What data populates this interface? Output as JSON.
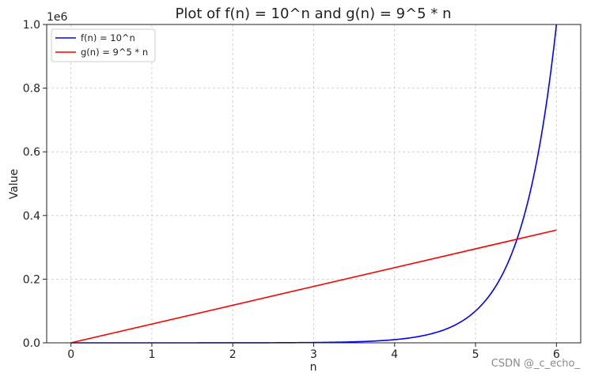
{
  "chart_data": {
    "type": "line",
    "title": "Plot of f(n) = 10^n and g(n) = 9^5 * n",
    "xlabel": "n",
    "ylabel": "Value",
    "y_offset_label": "1e6",
    "xlim": [
      -0.3,
      6.3
    ],
    "ylim": [
      0,
      1000000
    ],
    "xticks": [
      0,
      1,
      2,
      3,
      4,
      5,
      6
    ],
    "yticks": [
      0,
      200000,
      400000,
      600000,
      800000,
      1000000
    ],
    "ytick_labels": [
      "0.0",
      "0.2",
      "0.4",
      "0.6",
      "0.8",
      "1.0"
    ],
    "grid": true,
    "legend_position": "top-left",
    "series": [
      {
        "name": "f(n) = 10^n",
        "color": "#0000ff",
        "x": [
          0,
          1,
          2,
          3,
          4,
          4.5,
          5,
          5.25,
          5.5,
          5.75,
          6
        ],
        "y": [
          1,
          10,
          100,
          1000,
          10000,
          31623,
          100000,
          177828,
          316228,
          562341,
          1000000
        ]
      },
      {
        "name": "g(n) = 9^5 * n",
        "color": "#ff0000",
        "x": [
          0,
          6
        ],
        "y": [
          0,
          354294
        ]
      }
    ]
  },
  "watermark": "CSDN @_c_echo_"
}
